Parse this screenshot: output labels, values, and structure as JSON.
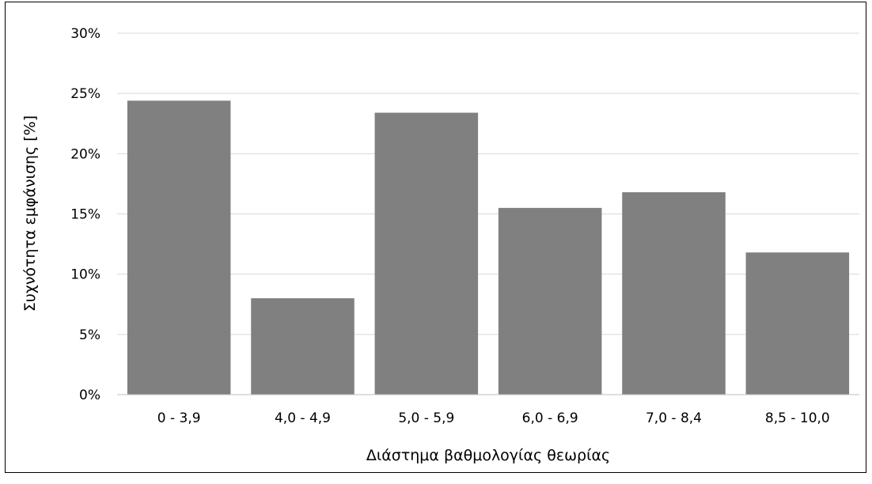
{
  "chart_data": {
    "type": "bar",
    "categories": [
      "0 - 3,9",
      "4,0 - 4,9",
      "5,0 - 5,9",
      "6,0 - 6,9",
      "7,0 - 8,4",
      "8,5 - 10,0"
    ],
    "values": [
      24.4,
      8.0,
      23.4,
      15.5,
      16.8,
      11.8
    ],
    "title": "",
    "xlabel": "Διάστημα βαθμολογίας θεωρίας",
    "ylabel": "Συχνότητα εμφάνισης [%]",
    "ylim": [
      0,
      30
    ],
    "yticks": [
      "0%",
      "5%",
      "10%",
      "15%",
      "20%",
      "25%",
      "30%"
    ],
    "grid": true,
    "legend": "none",
    "colors": {
      "bar": "#808080",
      "grid": "#d9d9d9",
      "axis": "#bfbfbf"
    }
  }
}
